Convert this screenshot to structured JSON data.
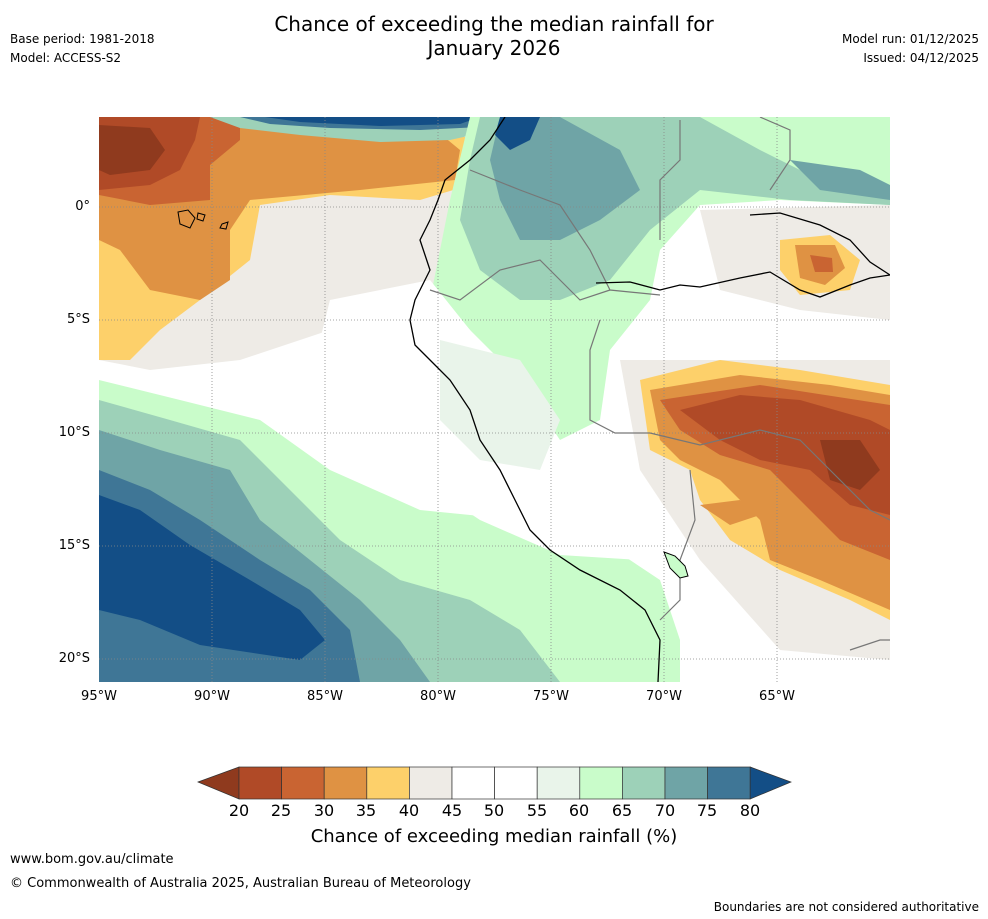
{
  "header": {
    "title_line1": "Chance of exceeding the median rainfall for",
    "title_line2": "January 2026",
    "base_period": "Base period: 1981-2018",
    "model": "Model: ACCESS-S2",
    "model_run": "Model run: 01/12/2025",
    "issued": "Issued: 04/12/2025"
  },
  "map": {
    "lat_labels": [
      "0°",
      "5°S",
      "10°S",
      "15°S",
      "20°S"
    ],
    "lon_labels": [
      "95°W",
      "90°W",
      "85°W",
      "80°W",
      "75°W",
      "70°W",
      "65°W"
    ],
    "colors": {
      "c20": "#8f3a1e",
      "c25": "#b04a27",
      "c30": "#c96432",
      "c35": "#df9243",
      "c40": "#fdd06a",
      "c45": "#eeebe6",
      "c50": "#ffffff",
      "c55": "#ffffff",
      "c60": "#e9f4ea",
      "c65": "#c9fcca",
      "c70": "#9dd1b8",
      "c75": "#6fa4a6",
      "c80": "#3f7696",
      "c85": "#134e86"
    }
  },
  "colorbar": {
    "ticks": [
      "20",
      "25",
      "30",
      "35",
      "40",
      "45",
      "50",
      "55",
      "60",
      "65",
      "70",
      "75",
      "80"
    ],
    "label": "Chance of exceeding median rainfall (%)"
  },
  "footer": {
    "website": "www.bom.gov.au/climate",
    "copyright": "© Commonwealth of Australia 2025, Australian Bureau of Meteorology",
    "disclaimer": "Boundaries are not considered authoritative"
  }
}
